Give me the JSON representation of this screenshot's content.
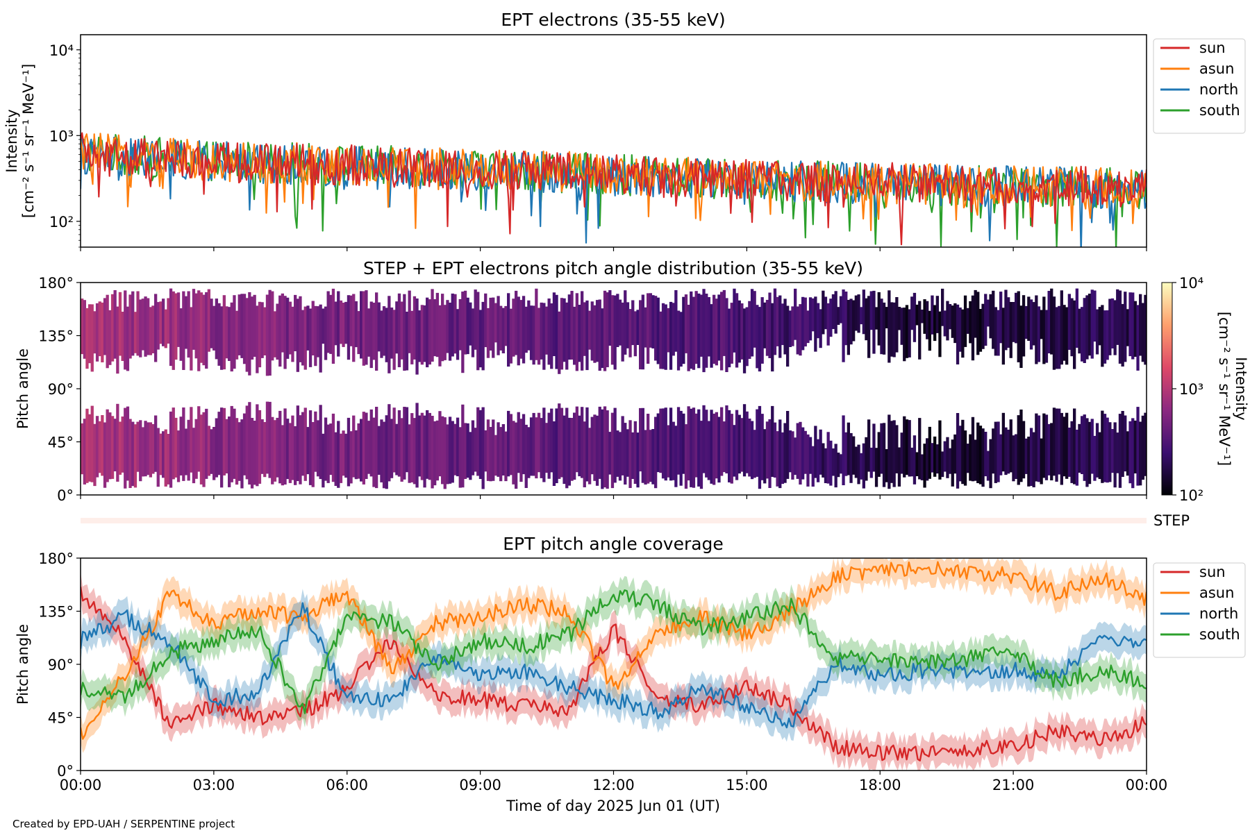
{
  "footer": "Created by EPD-UAH / SERPENTINE project",
  "chart_data": [
    {
      "type": "line",
      "title": "EPT electrons (35-55 keV)",
      "ylabel_lines": [
        "Intensity",
        "[cm⁻² s⁻¹ sr⁻¹ MeV⁻¹]"
      ],
      "yscale": "log",
      "ylim": [
        50,
        15000
      ],
      "yticks": [
        {
          "value": 100,
          "label": "10²"
        },
        {
          "value": 1000,
          "label": "10³"
        },
        {
          "value": 10000,
          "label": "10⁴"
        }
      ],
      "x": [
        0,
        1,
        2,
        3,
        4,
        5,
        6,
        7,
        8,
        9,
        10,
        11,
        12,
        13,
        14,
        15,
        16,
        17,
        18,
        19,
        20,
        21,
        22,
        23,
        24
      ],
      "series": [
        {
          "name": "sun",
          "color": "#d62728",
          "values": [
            620,
            560,
            520,
            500,
            480,
            460,
            450,
            430,
            410,
            400,
            390,
            370,
            350,
            330,
            320,
            310,
            300,
            290,
            280,
            270,
            265,
            260,
            255,
            250,
            245
          ]
        },
        {
          "name": "asun",
          "color": "#ff7f0e",
          "values": [
            640,
            580,
            540,
            510,
            490,
            470,
            455,
            440,
            420,
            405,
            395,
            375,
            355,
            335,
            322,
            312,
            302,
            292,
            282,
            272,
            266,
            261,
            256,
            251,
            246
          ]
        },
        {
          "name": "north",
          "color": "#1f77b4",
          "values": [
            600,
            550,
            515,
            495,
            475,
            455,
            445,
            425,
            405,
            395,
            385,
            365,
            345,
            325,
            315,
            305,
            295,
            285,
            275,
            265,
            260,
            255,
            250,
            245,
            240
          ]
        },
        {
          "name": "south",
          "color": "#2ca02c",
          "values": [
            650,
            590,
            545,
            515,
            495,
            475,
            458,
            438,
            418,
            402,
            392,
            372,
            352,
            332,
            318,
            308,
            298,
            288,
            278,
            268,
            262,
            257,
            252,
            247,
            242
          ]
        }
      ],
      "legend": "top-right"
    },
    {
      "type": "heatmap",
      "title": "STEP + EPT electrons pitch angle distribution (35-55 keV)",
      "ylabel": "Pitch angle",
      "ylim": [
        0,
        180
      ],
      "yticks": [
        "0°",
        "45°",
        "90°",
        "135°",
        "180°"
      ],
      "colorbar": {
        "label_lines": [
          "Intensity",
          "[cm⁻² s⁻¹ sr⁻¹ MeV⁻¹]"
        ],
        "scale": "log",
        "range": [
          100,
          10000
        ],
        "ticks": [
          "10²",
          "10³",
          "10⁴"
        ],
        "colors": [
          "#000004",
          "#3b0f70",
          "#8c2981",
          "#de4968",
          "#fe9f6d",
          "#fcfdbf"
        ]
      },
      "time_hours": [
        0,
        1,
        2,
        3,
        4,
        5,
        6,
        7,
        8,
        9,
        10,
        11,
        12,
        13,
        14,
        15,
        16,
        17,
        18,
        19,
        20,
        21,
        22,
        23,
        24
      ],
      "intensity": [
        900,
        800,
        700,
        600,
        560,
        520,
        480,
        440,
        420,
        400,
        380,
        360,
        340,
        320,
        300,
        280,
        260,
        220,
        160,
        150,
        150,
        170,
        180,
        190,
        200
      ],
      "gap_half_width_deg": [
        25,
        20,
        30,
        25,
        20,
        25,
        30,
        25,
        20,
        30,
        25,
        20,
        30,
        25,
        20,
        25,
        30,
        40,
        40,
        40,
        40,
        35,
        30,
        30,
        30
      ],
      "step_label": "STEP"
    },
    {
      "type": "line",
      "title": "EPT pitch angle coverage",
      "ylabel": "Pitch angle",
      "xlabel": "Time of day 2025 Jun 01 (UT)",
      "ylim": [
        0,
        180
      ],
      "yticks": [
        "0°",
        "45°",
        "90°",
        "135°",
        "180°"
      ],
      "xticks": [
        "00:00",
        "03:00",
        "06:00",
        "09:00",
        "12:00",
        "15:00",
        "18:00",
        "21:00",
        "00:00"
      ],
      "x": [
        0,
        1,
        2,
        3,
        4,
        5,
        6,
        7,
        8,
        9,
        10,
        11,
        12,
        13,
        14,
        15,
        16,
        17,
        18,
        19,
        20,
        21,
        22,
        23,
        24
      ],
      "series": [
        {
          "name": "sun",
          "color": "#d62728",
          "values": [
            150,
            110,
            40,
            55,
            45,
            50,
            70,
            110,
            65,
            60,
            55,
            50,
            120,
            60,
            55,
            70,
            55,
            20,
            15,
            15,
            18,
            20,
            35,
            25,
            40
          ]
        },
        {
          "name": "asun",
          "color": "#ff7f0e",
          "values": [
            30,
            80,
            150,
            125,
            135,
            130,
            150,
            85,
            125,
            130,
            140,
            135,
            70,
            120,
            130,
            115,
            135,
            165,
            170,
            172,
            168,
            165,
            150,
            165,
            145
          ]
        },
        {
          "name": "north",
          "color": "#1f77b4",
          "values": [
            110,
            130,
            110,
            60,
            65,
            140,
            60,
            60,
            95,
            80,
            85,
            70,
            60,
            50,
            70,
            55,
            40,
            90,
            80,
            85,
            85,
            85,
            80,
            110,
            110
          ]
        },
        {
          "name": "south",
          "color": "#2ca02c",
          "values": [
            70,
            60,
            100,
            110,
            120,
            50,
            130,
            125,
            90,
            110,
            105,
            115,
            150,
            140,
            120,
            130,
            140,
            95,
            95,
            92,
            95,
            100,
            75,
            85,
            75
          ]
        }
      ],
      "legend": "top-right"
    }
  ]
}
